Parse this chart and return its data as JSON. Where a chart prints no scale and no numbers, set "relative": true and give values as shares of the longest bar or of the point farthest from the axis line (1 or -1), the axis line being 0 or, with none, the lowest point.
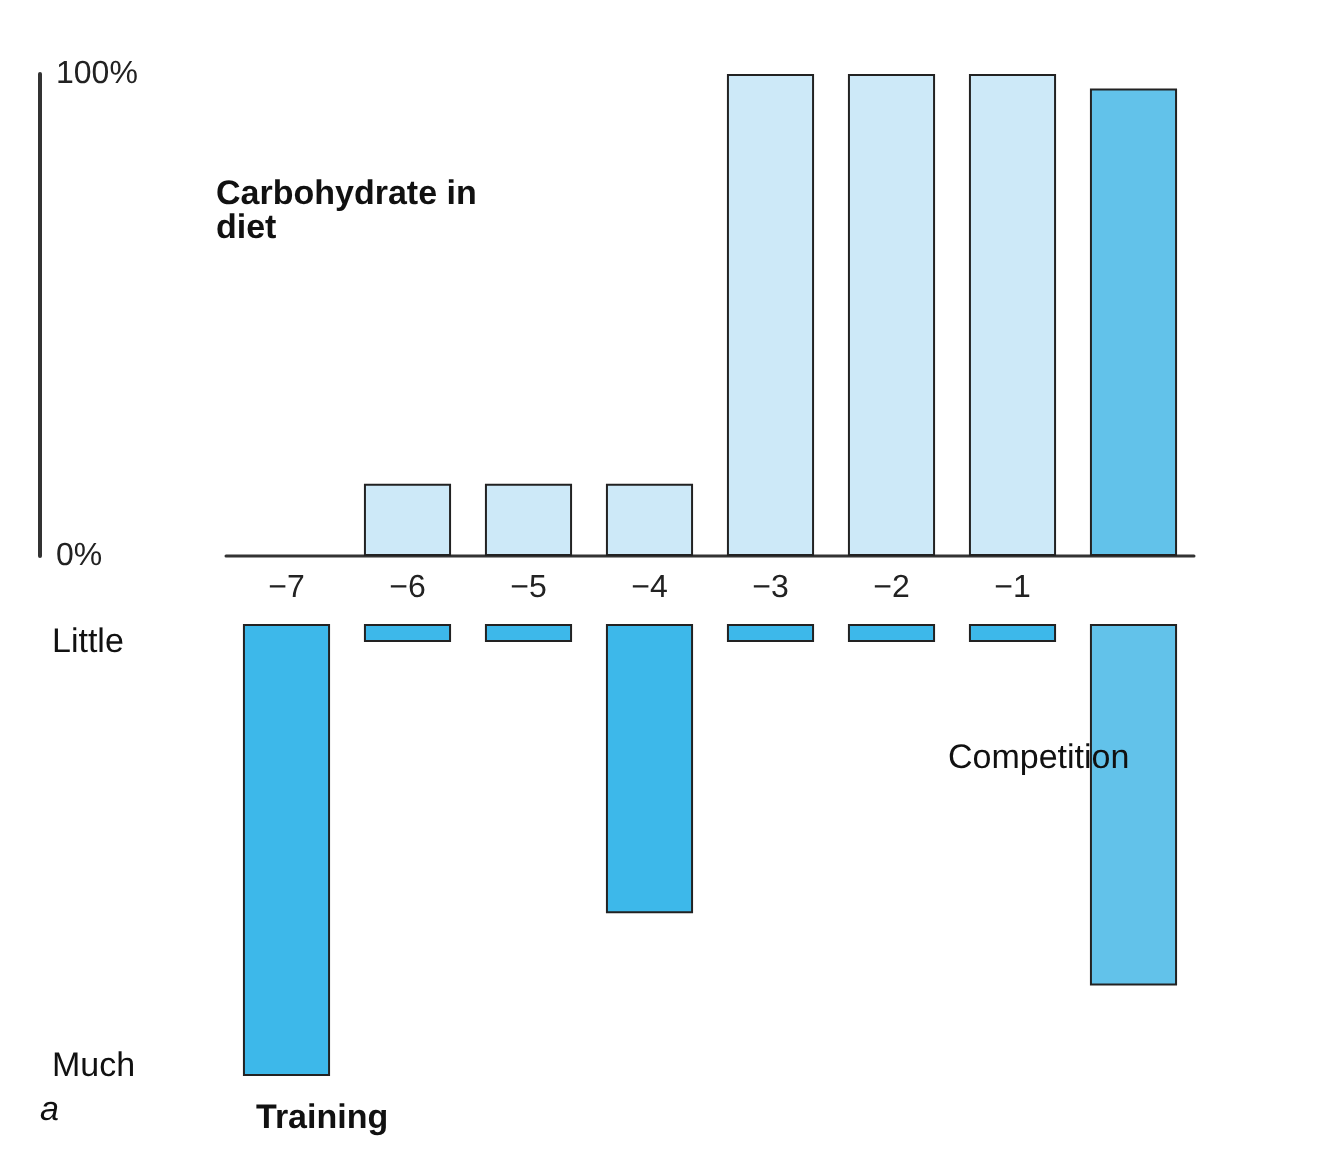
{
  "chart_data": [
    {
      "type": "bar",
      "categories": [
        "−7",
        "−6",
        "−5",
        "−4",
        "−3",
        "−2",
        "−1",
        null
      ],
      "series": [
        {
          "name": "Carbohydrate in diet",
          "values": [
            null,
            15,
            15,
            15,
            100,
            100,
            100,
            97
          ],
          "colors": [
            "#cde9f8",
            "#cde9f8",
            "#cde9f8",
            "#cde9f8",
            "#cde9f8",
            "#cde9f8",
            "#cde9f8",
            "#62c2ea"
          ]
        }
      ],
      "ylim": [
        0,
        100
      ],
      "yticks": [
        {
          "value": 0,
          "label": "0%"
        },
        {
          "value": 100,
          "label": "100%"
        }
      ],
      "grid": false,
      "legend": false
    },
    {
      "type": "bar",
      "relative": true,
      "categories": [
        "−7",
        "−6",
        "−5",
        "−4",
        "−3",
        "−2",
        "−1",
        null
      ],
      "tick_labels": false,
      "series": [
        {
          "name": "Training",
          "values": [
            -1,
            -0.04,
            -0.04,
            -0.64,
            -0.04,
            -0.04,
            -0.04,
            -0.8
          ],
          "colors": [
            "#3db8ea",
            "#3db8ea",
            "#3db8ea",
            "#3db8ea",
            "#3db8ea",
            "#3db8ea",
            "#3db8ea",
            "#62c2ea"
          ]
        }
      ],
      "annotations": [
        "Little",
        "Much",
        "Competition",
        "a"
      ],
      "legend": false
    }
  ]
}
